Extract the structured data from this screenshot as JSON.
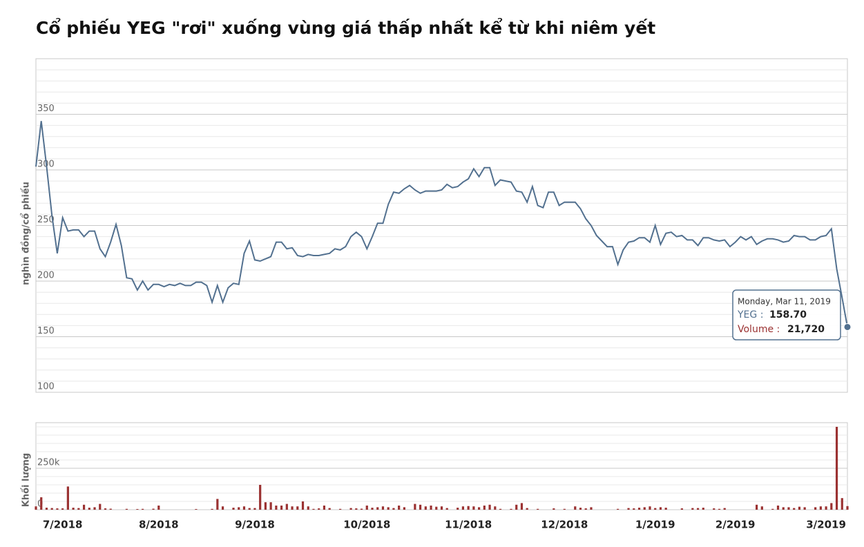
{
  "chart_data": {
    "type": "stock",
    "title": "Cổ phiếu YEG \"rơi\" xuống vùng giá thấp nhất kể từ khi niêm yết",
    "ylabel": "nghìn đồng/cổ phiếu",
    "y2label": "Khối lượng",
    "categories": [
      null,
      null,
      null,
      null,
      null,
      "7/2018",
      null,
      null,
      null,
      null,
      null,
      null,
      null,
      null,
      null,
      null,
      null,
      null,
      null,
      null,
      null,
      null,
      null,
      "8/2018",
      null,
      null,
      null,
      null,
      null,
      null,
      null,
      null,
      null,
      null,
      null,
      null,
      null,
      null,
      null,
      null,
      null,
      "9/2018",
      null,
      null,
      null,
      null,
      null,
      null,
      null,
      null,
      null,
      null,
      null,
      null,
      null,
      null,
      null,
      null,
      null,
      null,
      null,
      null,
      "10/2018",
      null,
      null,
      null,
      null,
      null,
      null,
      null,
      null,
      null,
      null,
      null,
      null,
      null,
      null,
      null,
      null,
      null,
      null,
      "11/2018",
      null,
      null,
      null,
      null,
      null,
      null,
      null,
      null,
      null,
      null,
      null,
      null,
      null,
      null,
      null,
      null,
      null,
      "12/2018",
      null,
      null,
      null,
      null,
      null,
      null,
      null,
      null,
      null,
      null,
      null,
      null,
      null,
      null,
      null,
      null,
      "1/2019",
      null,
      null,
      null,
      null,
      null,
      null,
      null,
      null,
      null,
      null,
      null,
      null,
      null,
      null,
      "2/2019",
      null,
      null,
      null,
      null,
      null,
      null,
      null,
      null,
      null,
      null,
      null,
      null,
      null,
      null,
      null,
      null,
      "3/2019",
      null,
      null,
      null,
      null
    ],
    "series": [
      {
        "color": "#52708f",
        "values": [
          303,
          344,
          303,
          259,
          225,
          257,
          245,
          246,
          246,
          240,
          245,
          245,
          229,
          222,
          235,
          251,
          232,
          203,
          202,
          192,
          200,
          192,
          197,
          197,
          195,
          197,
          196,
          198,
          196,
          196,
          199,
          199,
          196,
          181,
          196,
          181,
          194,
          198,
          197,
          225,
          236,
          219,
          218,
          220,
          222,
          235,
          235,
          229,
          230,
          223,
          222,
          224,
          223,
          223,
          224,
          225,
          229,
          228,
          231,
          240,
          244,
          240,
          229,
          240,
          252,
          252,
          269,
          280,
          279,
          283,
          286,
          282,
          279,
          281,
          281,
          281,
          282,
          287,
          284,
          285,
          289,
          292,
          301,
          294,
          302,
          302,
          286,
          291,
          290,
          289,
          281,
          280,
          271,
          285,
          268,
          266,
          280,
          280,
          268,
          271,
          271,
          271,
          265,
          256,
          250,
          241,
          236,
          231,
          231,
          215,
          228,
          235,
          236,
          239,
          239,
          235,
          250,
          233,
          243,
          244,
          240,
          241,
          237,
          237,
          232,
          239,
          239,
          237,
          236,
          237,
          231,
          235,
          240,
          237,
          240,
          233,
          236,
          238,
          238,
          237,
          235,
          236,
          241,
          240,
          240,
          237,
          237,
          240,
          241,
          247,
          211,
          185,
          158.7
        ]
      },
      {
        "color": "#9b3232",
        "axis": "y2",
        "values": [
          20000,
          75000,
          12000,
          10000,
          8000,
          8000,
          140000,
          12000,
          10000,
          30000,
          12000,
          15000,
          35000,
          8000,
          6000,
          0,
          0,
          5000,
          0,
          4000,
          5000,
          0,
          6000,
          25000,
          0,
          0,
          0,
          0,
          0,
          0,
          4000,
          0,
          0,
          5000,
          65000,
          20000,
          0,
          12000,
          15000,
          20000,
          10000,
          10000,
          150000,
          45000,
          45000,
          25000,
          25000,
          35000,
          20000,
          20000,
          50000,
          20000,
          5000,
          8000,
          25000,
          10000,
          0,
          5000,
          0,
          10000,
          8000,
          6000,
          25000,
          12000,
          15000,
          20000,
          15000,
          10000,
          25000,
          15000,
          0,
          35000,
          30000,
          20000,
          25000,
          18000,
          20000,
          10000,
          0,
          12000,
          20000,
          22000,
          20000,
          15000,
          25000,
          30000,
          20000,
          5000,
          0,
          5000,
          30000,
          40000,
          10000,
          0,
          5000,
          0,
          0,
          8000,
          0,
          5000,
          0,
          20000,
          12000,
          8000,
          15000,
          0,
          0,
          0,
          0,
          5000,
          0,
          10000,
          8000,
          12000,
          15000,
          20000,
          10000,
          15000,
          12000,
          0,
          0,
          8000,
          0,
          10000,
          10000,
          12000,
          0,
          8000,
          5000,
          10000,
          0,
          0,
          0,
          0,
          0,
          30000,
          20000,
          0,
          5000,
          25000,
          15000,
          15000,
          10000,
          18000,
          15000,
          0,
          15000,
          20000,
          20000,
          40000,
          500000,
          70000,
          21720
        ]
      }
    ],
    "ylim": [
      100,
      400
    ],
    "yticks": [
      100,
      150,
      200,
      250,
      300,
      350
    ],
    "y2lim": [
      0,
      525000
    ],
    "y2ticks": [
      0,
      {
        "value": 250000,
        "label": "250k"
      }
    ],
    "grid": true,
    "tooltip": {
      "date": "Monday, Mar 11, 2019",
      "rows": [
        {
          "name": "YEG :",
          "value": "158.70"
        },
        {
          "name": "Volume :",
          "value": "21,720"
        }
      ]
    }
  }
}
